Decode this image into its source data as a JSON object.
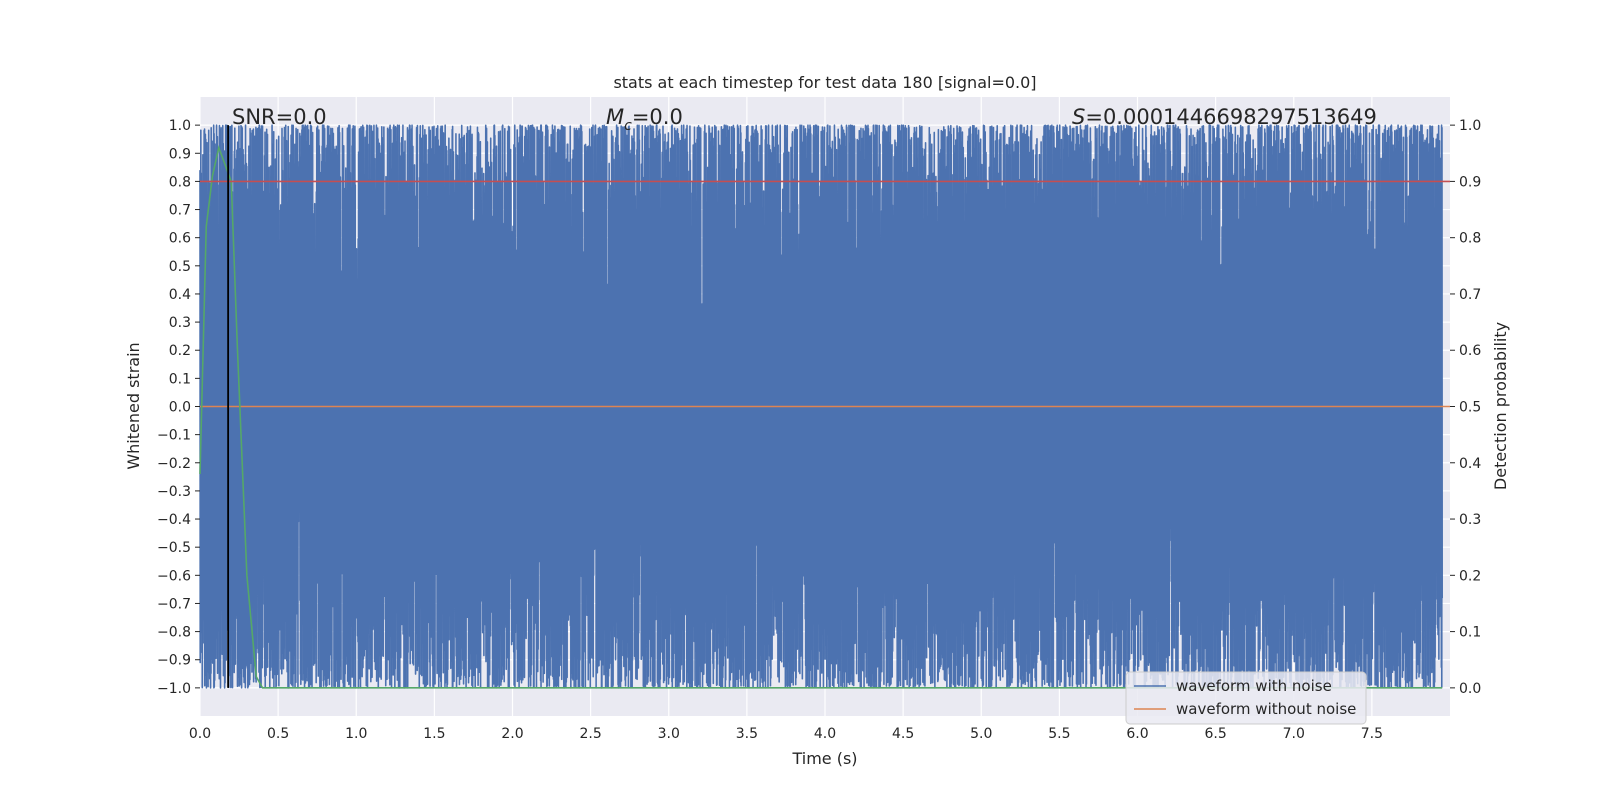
{
  "chart_data": {
    "type": "line",
    "title": "stats at each timestep for test data 180 [signal=0.0]",
    "xlabel": "Time (s)",
    "ylabel": "Whitened strain",
    "ylabel_right": "Detection probability",
    "xlim": [
      0.0,
      8.0
    ],
    "ylim": [
      -1.1,
      1.1
    ],
    "ylim_right": [
      -0.05,
      1.05
    ],
    "x_ticks": [
      "0.0",
      "0.5",
      "1.0",
      "1.5",
      "2.0",
      "2.5",
      "3.0",
      "3.5",
      "4.0",
      "4.5",
      "5.0",
      "5.5",
      "6.0",
      "6.5",
      "7.0",
      "7.5"
    ],
    "y_ticks": [
      "1.0",
      "0.9",
      "0.8",
      "0.7",
      "0.6",
      "0.5",
      "0.4",
      "0.3",
      "0.2",
      "0.1",
      "0.0",
      "−0.1",
      "−0.2",
      "−0.3",
      "−0.4",
      "−0.5",
      "−0.6",
      "−0.7",
      "−0.8",
      "−0.9",
      "−1.0"
    ],
    "y_ticks_right": [
      "1.0",
      "0.9",
      "0.8",
      "0.7",
      "0.6",
      "0.5",
      "0.4",
      "0.3",
      "0.2",
      "0.1",
      "0.0"
    ],
    "grid": true,
    "annotations": {
      "snr": "SNR=0.0",
      "mc_symbol": "M",
      "mc_sub": "c",
      "mc_value": "=0.0",
      "s_symbol": "S",
      "s_value": "=0.0001446698297513649"
    },
    "series": [
      {
        "name": "waveform with noise",
        "color": "#4c72b0",
        "axis": "left",
        "description_range": [
          -1.0,
          1.0
        ],
        "sample_count": 6000
      },
      {
        "name": "waveform without noise",
        "color": "#dd8452",
        "axis": "left",
        "x": [
          0.0,
          8.0
        ],
        "y": [
          0.0,
          0.0
        ]
      },
      {
        "color": "#55a868",
        "axis": "right",
        "x": [
          0.0,
          0.04,
          0.08,
          0.12,
          0.16,
          0.2,
          0.24,
          0.3,
          0.36,
          0.4,
          0.6,
          1.0,
          2.0,
          3.0,
          4.0,
          5.0,
          6.0,
          7.0,
          7.95
        ],
        "y": [
          0.38,
          0.82,
          0.91,
          0.96,
          0.93,
          0.9,
          0.6,
          0.2,
          0.02,
          0.0,
          0.0,
          0.0,
          0.0,
          0.0,
          0.0,
          0.0,
          0.0,
          0.0,
          0.0
        ]
      },
      {
        "color": "#c44e52",
        "axis": "right",
        "x": [
          0.0,
          8.0
        ],
        "y": [
          0.9,
          0.9
        ]
      }
    ],
    "vline": {
      "x": 0.18,
      "color": "#000000"
    },
    "legend": {
      "placement": "lower-right",
      "entries": [
        {
          "label": "waveform with noise",
          "color": "#4c72b0"
        },
        {
          "label": "waveform without noise",
          "color": "#dd8452"
        }
      ]
    },
    "colors": {
      "plot_bg": "#eaeaf2",
      "grid": "#ffffff",
      "noise": "#4c72b0",
      "clean": "#dd8452",
      "probability": "#55a868",
      "threshold": "#c44e52"
    }
  }
}
